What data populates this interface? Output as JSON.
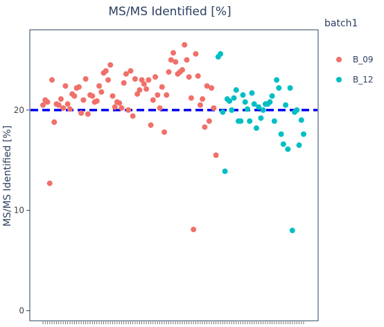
{
  "chart_data": {
    "type": "scatter",
    "title": "MS/MS Identified [%]",
    "ylabel": "MS/MS Identified [%]",
    "xlabel": "",
    "ylim": [
      -1,
      28
    ],
    "yticks": [
      0,
      10,
      20
    ],
    "grid": false,
    "reference_line": {
      "y": 20,
      "style": "dashed",
      "color": "#0000ee"
    },
    "legend": {
      "title": "batch1",
      "position": "right"
    },
    "series": [
      {
        "name": "B_09",
        "color": "#f0706a",
        "values": [
          20.5,
          21.0,
          20.8,
          12.7,
          23.0,
          18.8,
          20.6,
          20.5,
          21.1,
          20.2,
          22.4,
          20.6,
          20.1,
          21.6,
          21.4,
          22.2,
          22.3,
          19.7,
          21.0,
          23.1,
          19.6,
          21.5,
          21.4,
          20.8,
          20.9,
          22.4,
          21.8,
          23.7,
          23.9,
          23.0,
          24.5,
          21.4,
          20.3,
          20.8,
          20.7,
          20.2,
          22.7,
          23.6,
          20.0,
          23.9,
          19.4,
          23.1,
          21.6,
          22.0,
          23.0,
          22.6,
          22.1,
          23.0,
          18.5,
          21.0,
          23.3,
          21.5,
          20.2,
          22.3,
          17.8,
          21.5,
          23.8,
          25.0,
          25.7,
          24.8,
          23.6,
          23.8,
          24.0,
          26.5,
          25.0,
          23.3,
          21.2,
          8.1,
          25.6,
          23.4,
          20.5,
          21.1,
          18.3,
          22.4,
          18.9,
          22.2,
          20.2,
          15.5
        ]
      },
      {
        "name": "B_12",
        "color": "#00bfc4",
        "values": [
          25.3,
          25.6,
          19.8,
          13.9,
          21.1,
          20.9,
          20.0,
          21.2,
          22.0,
          18.9,
          18.9,
          21.5,
          20.8,
          20.1,
          18.9,
          21.7,
          20.6,
          18.2,
          20.3,
          19.2,
          20.0,
          20.6,
          20.6,
          20.8,
          21.4,
          18.9,
          23.0,
          22.2,
          17.6,
          16.6,
          20.5,
          16.1,
          22.2,
          8.0,
          19.8,
          20.0,
          16.5,
          19.0,
          17.6
        ]
      }
    ]
  }
}
